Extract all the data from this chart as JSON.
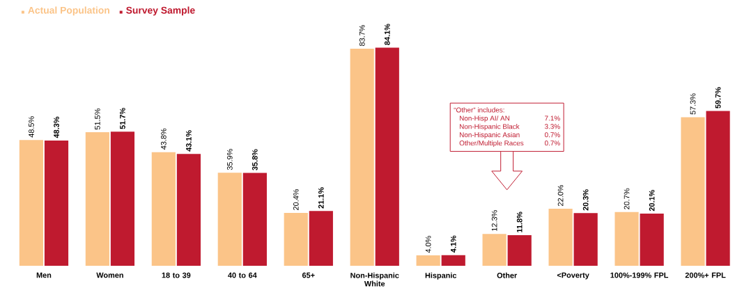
{
  "chart_data": {
    "type": "bar",
    "categories": [
      "Men",
      "Women",
      "18 to 39",
      "40 to 64",
      "65+",
      "Non-Hispanic White",
      "Hispanic",
      "Other",
      "<Poverty",
      "100%-199% FPL",
      "200%+ FPL"
    ],
    "series": [
      {
        "name": "Actual Population",
        "color": "#fbc488",
        "values": [
          48.5,
          51.5,
          43.8,
          35.9,
          20.4,
          83.7,
          4.0,
          12.3,
          22.0,
          20.7,
          57.3
        ],
        "value_labels": [
          "48.5%",
          "51.5%",
          "43.8%",
          "35.9%",
          "20.4%",
          "83.7%",
          "4.0%",
          "12.3%",
          "22.0%",
          "20.7%",
          "57.3%"
        ]
      },
      {
        "name": "Survey Sample",
        "color": "#bf1a2f",
        "values": [
          48.3,
          51.7,
          43.1,
          35.8,
          21.1,
          84.1,
          4.1,
          11.8,
          20.3,
          20.1,
          59.7
        ],
        "value_labels": [
          "48.3%",
          "51.7%",
          "43.1%",
          "35.8%",
          "21.1%",
          "84.1%",
          "4.1%",
          "11.8%",
          "20.3%",
          "20.1%",
          "59.7%"
        ]
      }
    ],
    "legend": "top left",
    "annotations": [
      "“Other” includes:",
      "Non-Hisp AI/ AN",
      "7.1%",
      "Non-Hispanic Black",
      "3.3%",
      "Non-Hispanic Asian",
      "0.7%",
      "Other/Multiple Races",
      "0.7%"
    ]
  }
}
